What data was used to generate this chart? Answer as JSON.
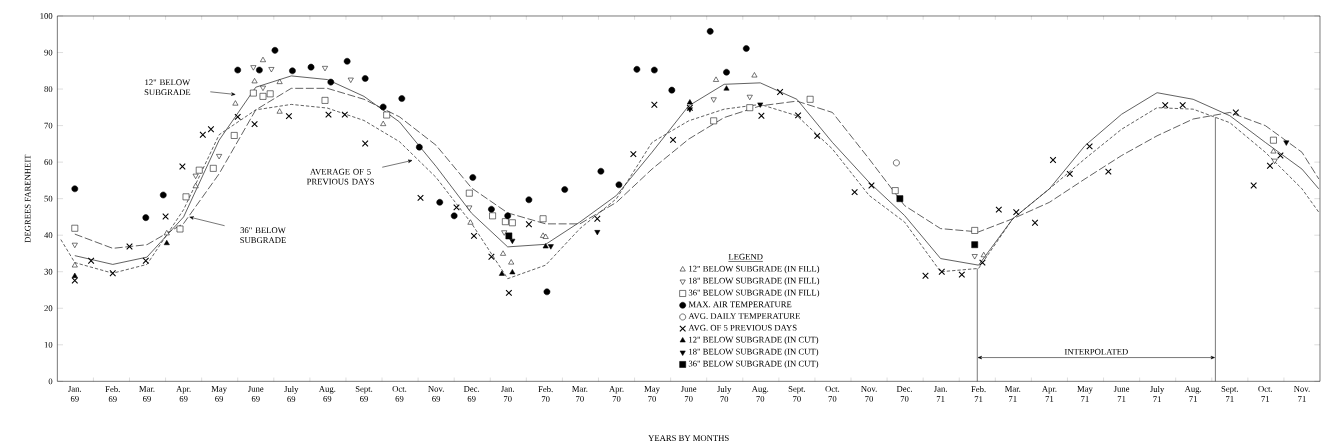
{
  "chart_data": {
    "type": "scatter",
    "xlabel": "YEARS BY MONTHS",
    "ylabel": "DEGREES FARENHEIT",
    "legend_title": "LEGEND",
    "legend": "bottom",
    "xlim": [
      "1969-01-01",
      "1971-12-01"
    ],
    "ylim": [
      0,
      100
    ],
    "xticks": [
      {
        "value": "1969-01-16",
        "label": "Jan. 69"
      },
      {
        "value": "1969-02-16",
        "label": "Feb. 69"
      },
      {
        "value": "1969-03-16",
        "label": "Mar. 69"
      },
      {
        "value": "1969-04-16",
        "label": "Apr. 69"
      },
      {
        "value": "1969-05-16",
        "label": "May 69"
      },
      {
        "value": "1969-06-16",
        "label": "June 69"
      },
      {
        "value": "1969-07-16",
        "label": "July 69"
      },
      {
        "value": "1969-08-16",
        "label": "Aug. 69"
      },
      {
        "value": "1969-09-16",
        "label": "Sept. 69"
      },
      {
        "value": "1969-10-16",
        "label": "Oct. 69"
      },
      {
        "value": "1969-11-16",
        "label": "Nov. 69"
      },
      {
        "value": "1969-12-16",
        "label": "Dec. 69"
      },
      {
        "value": "1970-01-16",
        "label": "Jan. 70"
      },
      {
        "value": "1970-02-16",
        "label": "Feb. 70"
      },
      {
        "value": "1970-03-16",
        "label": "Mar. 70"
      },
      {
        "value": "1970-04-16",
        "label": "Apr. 70"
      },
      {
        "value": "1970-05-16",
        "label": "May 70"
      },
      {
        "value": "1970-06-16",
        "label": "June 70"
      },
      {
        "value": "1970-07-16",
        "label": "July 70"
      },
      {
        "value": "1970-08-16",
        "label": "Aug. 70"
      },
      {
        "value": "1970-09-16",
        "label": "Sept. 70"
      },
      {
        "value": "1970-10-16",
        "label": "Oct. 70"
      },
      {
        "value": "1970-11-16",
        "label": "Nov. 70"
      },
      {
        "value": "1970-12-16",
        "label": "Dec. 70"
      },
      {
        "value": "1971-01-16",
        "label": "Jan. 71"
      },
      {
        "value": "1971-02-16",
        "label": "Feb. 71"
      },
      {
        "value": "1971-03-16",
        "label": "Mar. 71"
      },
      {
        "value": "1971-04-16",
        "label": "Apr. 71"
      },
      {
        "value": "1971-05-16",
        "label": "May 71"
      },
      {
        "value": "1971-06-16",
        "label": "June 71"
      },
      {
        "value": "1971-07-16",
        "label": "July 71"
      },
      {
        "value": "1971-08-16",
        "label": "Aug. 71"
      },
      {
        "value": "1971-09-16",
        "label": "Sept. 71"
      },
      {
        "value": "1971-10-16",
        "label": "Oct. 71"
      },
      {
        "value": "1971-11-16",
        "label": "Nov. 71"
      }
    ],
    "yticks": [
      0,
      10,
      20,
      30,
      40,
      50,
      60,
      70,
      80,
      90,
      100
    ],
    "series": [
      {
        "name": "12\" BELOW SUBGRADE (IN FILL)",
        "marker": "triangle",
        "color": "#ffffff",
        "x": [
          "1969-01-16",
          "1969-04-02",
          "1969-04-26",
          "1969-05-30",
          "1969-06-15",
          "1969-06-22",
          "1969-07-06",
          "1969-07-06",
          "1969-10-02",
          "1969-12-15",
          "1970-01-12",
          "1970-01-19",
          "1970-02-14",
          "1970-02-16",
          "1970-07-09",
          "1970-08-11",
          "1971-02-20",
          "1971-10-23"
        ],
        "values": [
          31.7,
          40.5,
          53.4,
          76,
          82.1,
          87.9,
          73.8,
          81.9,
          70.4,
          43.4,
          34.9,
          32.5,
          39.8,
          39.5,
          82.5,
          83.7,
          34.5,
          62.9
        ]
      },
      {
        "name": "18\" BELOW SUBGRADE (IN FILL)",
        "marker": "triangle-down",
        "color": "#ffffff",
        "x": [
          "1969-01-16",
          "1969-04-26",
          "1969-05-16",
          "1969-06-14",
          "1969-06-22",
          "1969-06-29",
          "1969-08-14",
          "1969-09-05",
          "1969-12-14",
          "1970-01-13",
          "1970-07-07",
          "1970-08-07",
          "1971-02-13",
          "1971-10-24"
        ],
        "values": [
          37.4,
          56.3,
          61.7,
          86,
          80.4,
          85.5,
          85.8,
          82.6,
          47.6,
          40.8,
          77.2,
          77.9,
          34.3,
          60.4
        ]
      },
      {
        "name": "36\" BELOW SUBGRADE (IN FILL)",
        "marker": "square",
        "color": "#ffffff",
        "x": [
          "1969-01-16",
          "1969-04-13",
          "1969-04-18",
          "1969-04-29",
          "1969-05-11",
          "1969-05-29",
          "1969-06-14",
          "1969-06-22",
          "1969-06-28",
          "1969-08-14",
          "1969-10-05",
          "1969-12-14",
          "1970-01-03",
          "1970-01-14",
          "1970-01-20",
          "1970-02-14",
          "1970-07-07",
          "1970-08-07",
          "1970-09-27",
          "1970-12-08",
          "1971-02-13",
          "1971-10-23"
        ],
        "values": [
          41.9,
          41.7,
          50.5,
          57.8,
          58.3,
          67.3,
          78.9,
          78,
          78.7,
          76.9,
          72.9,
          51.5,
          45.3,
          43.7,
          43.4,
          44.5,
          71.3,
          74.9,
          77.2,
          52.2,
          41.3,
          66
        ]
      },
      {
        "name": "MAX. AIR TEMPERATURE",
        "marker": "circle",
        "color": "#000000",
        "x": [
          "1969-01-16",
          "1969-03-15",
          "1969-03-30",
          "1969-06-01",
          "1969-06-19",
          "1969-07-02",
          "1969-07-17",
          "1969-08-02",
          "1969-08-19",
          "1969-09-02",
          "1969-09-17",
          "1969-10-02",
          "1969-10-18",
          "1969-11-02",
          "1969-11-19",
          "1969-12-01",
          "1969-12-17",
          "1970-01-02",
          "1970-01-16",
          "1970-02-03",
          "1970-02-17",
          "1970-03-03",
          "1970-04-03",
          "1970-04-18",
          "1970-05-03",
          "1970-05-18",
          "1970-06-02",
          "1970-07-04",
          "1970-07-18",
          "1970-08-04"
        ],
        "values": [
          52.7,
          44.8,
          51,
          85.2,
          85.2,
          90.6,
          85,
          86,
          81.9,
          87.6,
          82.9,
          75.1,
          77.4,
          64.1,
          49,
          45.3,
          55.8,
          47.1,
          45.3,
          49.7,
          24.5,
          52.5,
          57.5,
          53.8,
          85.4,
          85.2,
          79.7,
          95.8,
          84.6,
          91.1
        ]
      },
      {
        "name": "AVG. DAILY TEMPERATURE",
        "marker": "circle",
        "color": "#ffffff",
        "x": [
          "1970-12-09"
        ],
        "values": [
          59.8
        ]
      },
      {
        "name": "AVG. OF 5 PREVIOUS DAYS",
        "marker": "cross",
        "color": "#000000",
        "x": [
          "1969-01-16",
          "1969-01-30",
          "1969-02-16",
          "1969-03-01",
          "1969-03-15",
          "1969-04-01",
          "1969-04-15",
          "1969-05-02",
          "1969-05-09",
          "1969-06-01",
          "1969-06-15",
          "1969-07-14",
          "1969-08-17",
          "1969-08-31",
          "1969-09-17",
          "1969-11-03",
          "1969-12-03",
          "1969-12-18",
          "1970-01-02",
          "1970-01-17",
          "1970-02-03",
          "1970-03-31",
          "1970-04-30",
          "1970-05-18",
          "1970-06-03",
          "1970-06-17",
          "1970-09-02",
          "1970-08-17",
          "1970-09-17",
          "1970-10-03",
          "1970-11-04",
          "1970-11-18",
          "1971-01-03",
          "1971-01-17",
          "1971-02-03",
          "1971-02-19",
          "1971-03-04",
          "1971-03-19",
          "1971-04-04",
          "1971-04-19",
          "1971-05-03",
          "1971-05-20",
          "1971-06-05",
          "1971-07-23",
          "1971-08-07",
          "1971-09-21",
          "1971-10-06",
          "1971-10-20",
          "1971-10-29"
        ],
        "values": [
          27.6,
          33,
          29.6,
          36.9,
          33,
          45.1,
          58.8,
          67.5,
          69,
          72.4,
          70.4,
          72.6,
          73,
          73,
          65.1,
          50.2,
          47.6,
          39.8,
          34.1,
          24.2,
          43,
          44.5,
          62.2,
          75.7,
          66.1,
          74.9,
          79.2,
          72.7,
          72.8,
          67.2,
          51.8,
          53.6,
          28.9,
          30,
          29.2,
          32.5,
          47,
          46.3,
          43.4,
          60.6,
          56.8,
          64.3,
          57.4,
          75.6,
          75.6,
          73.6,
          53.6,
          59,
          61.8
        ]
      },
      {
        "name": "12\" BELOW SUBGRADE (IN CUT)",
        "marker": "triangle",
        "color": "#000000",
        "x": [
          "1969-01-16",
          "1969-04-02",
          "1970-01-11",
          "1970-01-20",
          "1970-02-16",
          "1970-06-17",
          "1970-07-18"
        ],
        "values": [
          28.8,
          37.8,
          29.4,
          29.8,
          36.9,
          76.3,
          80.1
        ]
      },
      {
        "name": "18\" BELOW SUBGRADE (IN CUT)",
        "marker": "triangle-down",
        "color": "#000000",
        "x": [
          "1970-01-20",
          "1970-02-20",
          "1970-03-31",
          "1970-06-17",
          "1970-08-16",
          "1971-11-03"
        ],
        "values": [
          38.5,
          37,
          40.9,
          74.5,
          75.8,
          65.4
        ]
      },
      {
        "name": "36\" BELOW SUBGRADE (IN CUT)",
        "marker": "square",
        "color": "#000000",
        "x": [
          "1970-01-17",
          "1970-12-12",
          "1971-02-13"
        ],
        "values": [
          39.8,
          50,
          37.4
        ]
      },
      {
        "type": "line",
        "line_style": "solid",
        "color": "#3a3a3a",
        "x": [
          "1969-01-16",
          "1969-02-16",
          "1969-03-16",
          "1969-04-16",
          "1969-05-16",
          "1969-06-16",
          "1969-07-16",
          "1969-08-16",
          "1969-09-16",
          "1969-10-16",
          "1969-11-16",
          "1969-12-16",
          "1970-01-16",
          "1970-02-16",
          "1970-03-16",
          "1970-04-16",
          "1970-05-16",
          "1970-06-16",
          "1970-07-16",
          "1970-08-16",
          "1970-09-16",
          "1970-10-16",
          "1970-11-16",
          "1970-12-16",
          "1971-01-16",
          "1971-02-16",
          "1971-03-16",
          "1971-04-16",
          "1971-05-16",
          "1971-06-16",
          "1971-07-16",
          "1971-08-16",
          "1971-09-16",
          "1971-10-16",
          "1971-11-16",
          "1971-11-30"
        ],
        "values": [
          34.4,
          32,
          34,
          45,
          66,
          80.5,
          83.6,
          82.6,
          78,
          71,
          58.8,
          46,
          36.8,
          37.5,
          43.6,
          50.9,
          62.7,
          75.4,
          81.3,
          81.7,
          77.2,
          65.4,
          54.5,
          45.4,
          33.6,
          31.8,
          44.5,
          52.7,
          64.5,
          73.1,
          79,
          77.2,
          72.7,
          65.4,
          58.1,
          52.7
        ]
      },
      {
        "type": "line",
        "line_style": "long dashed",
        "color": "#3a3a3a",
        "x": [
          "1969-01-16",
          "1969-02-16",
          "1969-03-16",
          "1969-04-16",
          "1969-05-16",
          "1969-06-16",
          "1969-07-16",
          "1969-08-16",
          "1969-09-16",
          "1969-10-16",
          "1969-11-16",
          "1969-12-16",
          "1970-01-16",
          "1970-02-16",
          "1970-03-16",
          "1970-04-16",
          "1970-05-16",
          "1970-06-16",
          "1970-07-16",
          "1970-08-16",
          "1970-09-16",
          "1970-10-16",
          "1970-11-16",
          "1970-12-16",
          "1971-01-16",
          "1971-02-16",
          "1971-03-16",
          "1971-04-16",
          "1971-05-16",
          "1971-06-16",
          "1971-07-16",
          "1971-08-16",
          "1971-09-16",
          "1971-10-16",
          "1971-11-16",
          "1971-11-30"
        ],
        "values": [
          40.3,
          36.4,
          37.4,
          43.2,
          56.8,
          74.3,
          80.2,
          80.2,
          77.2,
          72.4,
          64.6,
          52.9,
          46.1,
          43.1,
          43.1,
          49,
          58.1,
          66.3,
          72.2,
          75.4,
          76.7,
          73.6,
          60.9,
          48.1,
          41.8,
          40.9,
          44.5,
          49,
          55.4,
          61.8,
          67.2,
          71.8,
          73.6,
          70,
          62.7,
          55.4
        ]
      },
      {
        "type": "line",
        "line_style": "dashed",
        "color": "#3a3a3a",
        "x": [
          "1969-01-04",
          "1969-01-16",
          "1969-02-16",
          "1969-03-16",
          "1969-04-16",
          "1969-05-16",
          "1969-06-16",
          "1969-07-16",
          "1969-08-16",
          "1969-09-16",
          "1969-10-16",
          "1969-11-16",
          "1969-12-16",
          "1970-01-16",
          "1970-02-16",
          "1970-03-16",
          "1970-04-16",
          "1970-05-16",
          "1970-06-16",
          "1970-07-16",
          "1970-08-16",
          "1970-09-16",
          "1970-10-16",
          "1970-11-16",
          "1970-12-16",
          "1971-01-16",
          "1971-02-16",
          "1971-03-16",
          "1971-04-16",
          "1971-05-16",
          "1971-06-16",
          "1971-07-16",
          "1971-08-16",
          "1971-09-16",
          "1971-10-16",
          "1971-11-16",
          "1971-11-30"
        ],
        "values": [
          38.8,
          32.5,
          29.6,
          32,
          47,
          67.5,
          74.3,
          75.8,
          74.8,
          71.4,
          65.6,
          55.8,
          43.2,
          28.1,
          31.8,
          41.8,
          50,
          65.4,
          71.3,
          74.5,
          75.8,
          72.7,
          63.6,
          50.9,
          43.6,
          30,
          30.9,
          44.5,
          52.7,
          60.9,
          69,
          74.9,
          74.5,
          70.8,
          62.7,
          52.7,
          46.3
        ]
      }
    ],
    "annotations": [
      "12\" BELOW SUBGRADE",
      "36\" BELOW SUBGRADE",
      "AVERAGE OF 5 PREVIOUS DAYS",
      "INTERPOLATED"
    ],
    "ref_lines": [
      {
        "axis": "x",
        "value": "1971-02-15"
      },
      {
        "axis": "x",
        "value": "1971-09-04"
      }
    ]
  }
}
